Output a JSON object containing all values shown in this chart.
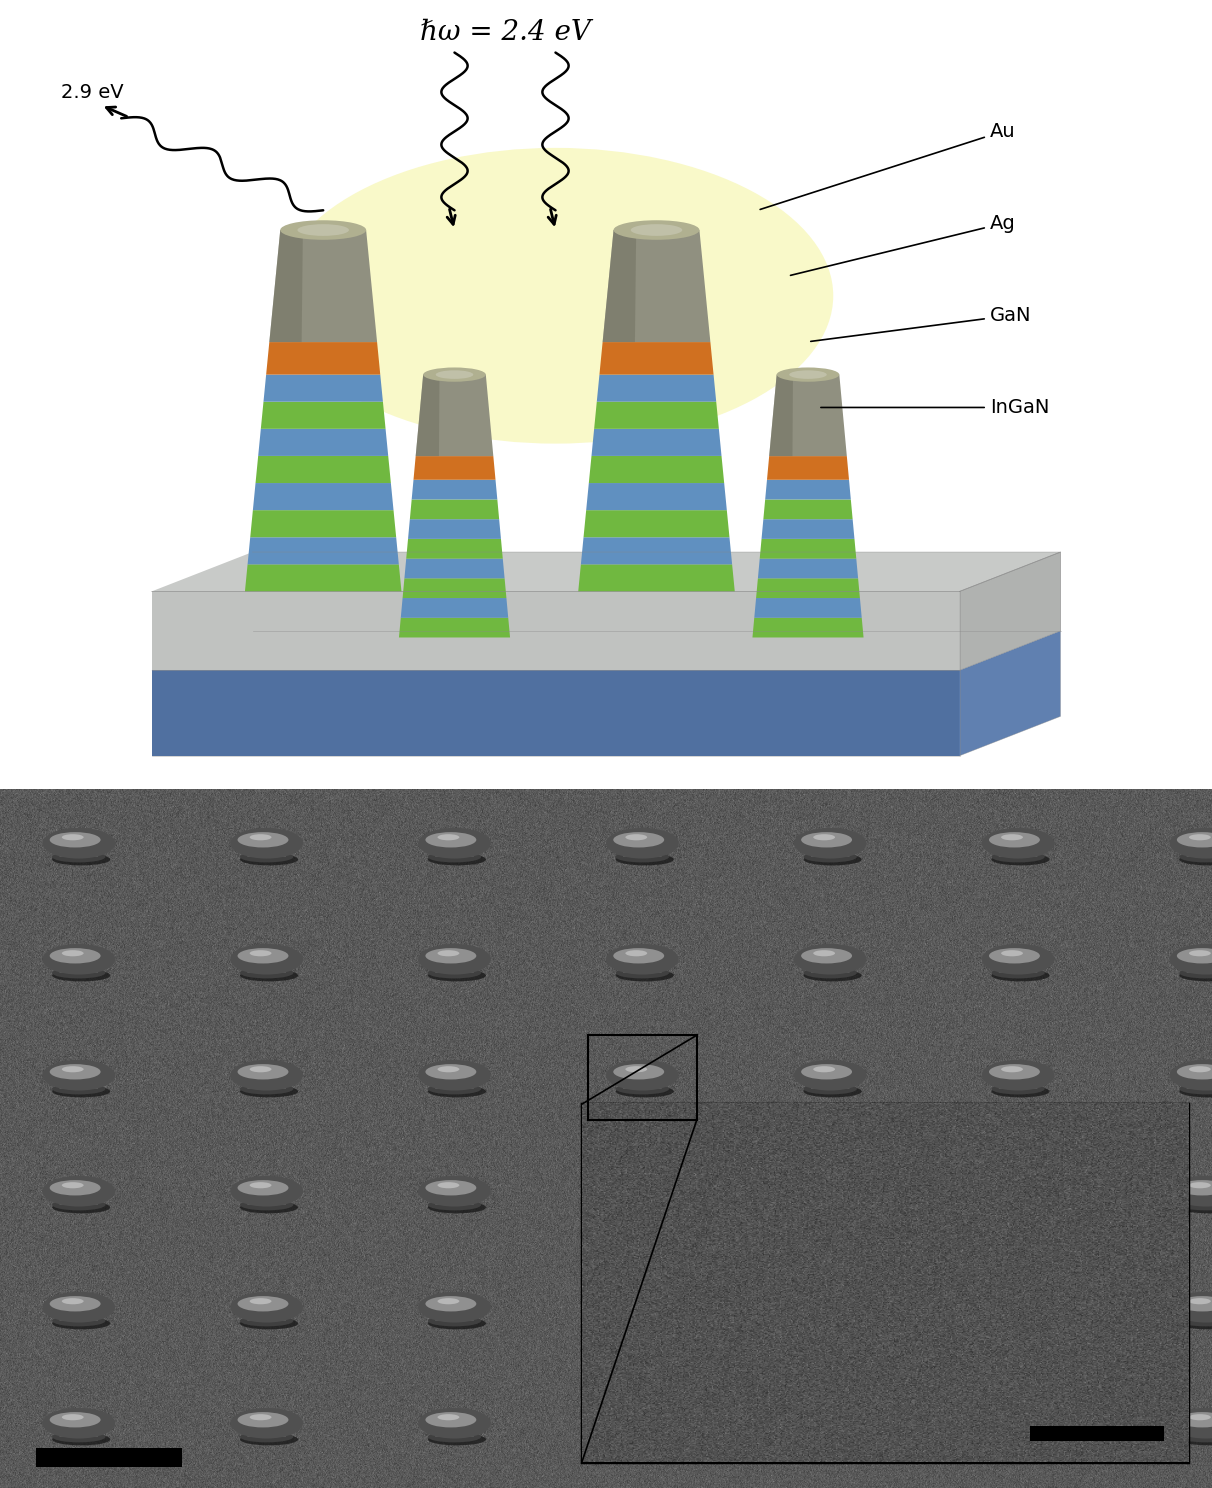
{
  "title_top": "ℏω = 2.4 eV",
  "label_outgoing": "2.9 eV",
  "label_Au": "Au",
  "label_Ag": "Ag",
  "label_GaN": "GaN",
  "label_InGaN": "InGaN",
  "bg_color": "#ffffff",
  "sem_bg_color": "#585858",
  "pillar_colors": {
    "gan_blue": "#6090c0",
    "ingan_green": "#70b840",
    "ag_orange": "#d07020",
    "au_gray": "#909080",
    "au_dark": "#707060",
    "au_light": "#b0b090"
  },
  "substrate_top": "#c8cac8",
  "substrate_top_side": "#a0a2a0",
  "substrate_top_right": "#b0b2b0",
  "substrate_bot": "#7090c0",
  "substrate_bot_front": "#5070a0",
  "substrate_bot_right": "#6080b0",
  "glow_color": "#f8f8c0",
  "inset_bg": "#404040"
}
